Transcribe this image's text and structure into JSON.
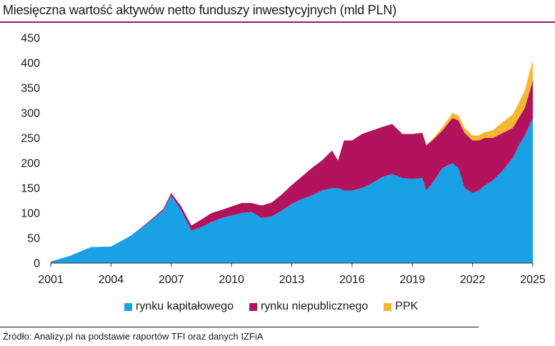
{
  "chart_data": {
    "type": "area",
    "stacked": true,
    "title": "Miesięczna wartość aktywów netto funduszy inwestycyjnych (mld PLN)",
    "ylim": [
      0,
      450
    ],
    "yticks": [
      0,
      50,
      100,
      150,
      200,
      250,
      300,
      350,
      400,
      450
    ],
    "xlim": [
      2001,
      2025
    ],
    "xticks": [
      2001,
      2004,
      2007,
      2010,
      2013,
      2016,
      2019,
      2022,
      2025
    ],
    "grid": false,
    "legend_position": "bottom",
    "x": [
      2001,
      2002,
      2003,
      2004,
      2005,
      2006,
      2006.6,
      2007.0,
      2007.5,
      2008.0,
      2008.5,
      2009.0,
      2009.5,
      2010.0,
      2010.5,
      2011.0,
      2011.5,
      2012.0,
      2012.5,
      2013.0,
      2013.5,
      2014.0,
      2014.5,
      2015.0,
      2015.3,
      2015.6,
      2016.0,
      2016.5,
      2017.0,
      2017.5,
      2018.0,
      2018.5,
      2019.0,
      2019.5,
      2019.7,
      2020.0,
      2020.5,
      2021.0,
      2021.3,
      2021.6,
      2022.0,
      2022.3,
      2022.6,
      2023.0,
      2023.5,
      2024.0,
      2024.3,
      2024.6,
      2025.0
    ],
    "series": [
      {
        "name": "rynku kapitałowego",
        "color": "#1aa1e5",
        "values": [
          3,
          15,
          32,
          33,
          55,
          85,
          105,
          135,
          105,
          65,
          72,
          82,
          90,
          95,
          100,
          102,
          90,
          93,
          105,
          118,
          128,
          135,
          145,
          150,
          150,
          145,
          145,
          150,
          160,
          172,
          178,
          170,
          168,
          170,
          145,
          160,
          190,
          200,
          190,
          150,
          140,
          145,
          155,
          165,
          185,
          210,
          235,
          255,
          290
        ]
      },
      {
        "name": "rynku niepublicznego",
        "color": "#b3125d",
        "values": [
          0,
          0,
          0,
          0,
          0,
          2,
          3,
          5,
          8,
          10,
          15,
          18,
          16,
          18,
          20,
          18,
          25,
          28,
          32,
          38,
          45,
          55,
          60,
          75,
          55,
          100,
          100,
          108,
          105,
          100,
          100,
          88,
          90,
          90,
          90,
          85,
          75,
          90,
          95,
          110,
          105,
          100,
          95,
          85,
          75,
          60,
          55,
          55,
          75
        ]
      },
      {
        "name": "PPK",
        "color": "#f5b731",
        "values": [
          0,
          0,
          0,
          0,
          0,
          0,
          0,
          0,
          0,
          0,
          0,
          0,
          0,
          0,
          0,
          0,
          0,
          0,
          0,
          0,
          0,
          0,
          0,
          0,
          0,
          0,
          0,
          0,
          0,
          0,
          0,
          0,
          0,
          1,
          2,
          3,
          6,
          10,
          10,
          10,
          10,
          10,
          12,
          15,
          22,
          27,
          30,
          35,
          40
        ]
      }
    ]
  },
  "legend": {
    "items": [
      {
        "label": "rynku kapitałowego",
        "color": "#1aa1e5"
      },
      {
        "label": "rynku niepublicznego",
        "color": "#b3125d"
      },
      {
        "label": "PPK",
        "color": "#f5b731"
      }
    ]
  },
  "source": "Źródło: Analizy.pl na podstawie raportów TFI oraz danych IZFiA"
}
